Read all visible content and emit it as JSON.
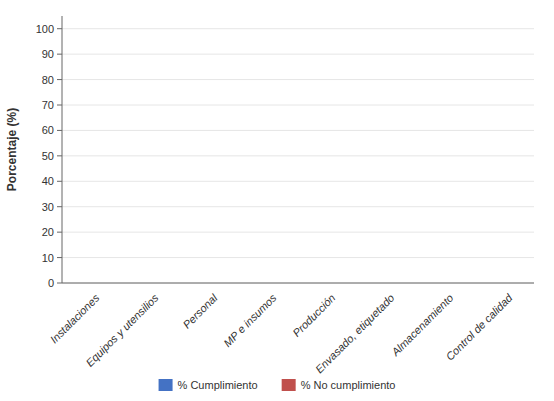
{
  "chart_data": {
    "type": "bar",
    "categories": [
      "Instalaciones",
      "Equipos y utensilios",
      "Personal",
      "MP e insumos",
      "Producción",
      "Envasado, etiquetado",
      "Almacenamiento",
      "Control de calidad"
    ],
    "series": [
      {
        "name": "% Cumplimiento",
        "color": "#4472C4",
        "values": [
          0,
          0,
          0,
          0,
          0,
          0,
          0,
          0
        ]
      },
      {
        "name": "% No cumplimiento",
        "color": "#C0504D",
        "values": [
          0,
          0,
          0,
          0,
          0,
          0,
          0,
          0
        ]
      }
    ],
    "ylabel": "Porcentaje (%)",
    "ylim": [
      0,
      105
    ],
    "yticks": [
      0,
      10,
      20,
      30,
      40,
      50,
      60,
      70,
      80,
      90,
      100
    ],
    "legend": "bottom"
  }
}
